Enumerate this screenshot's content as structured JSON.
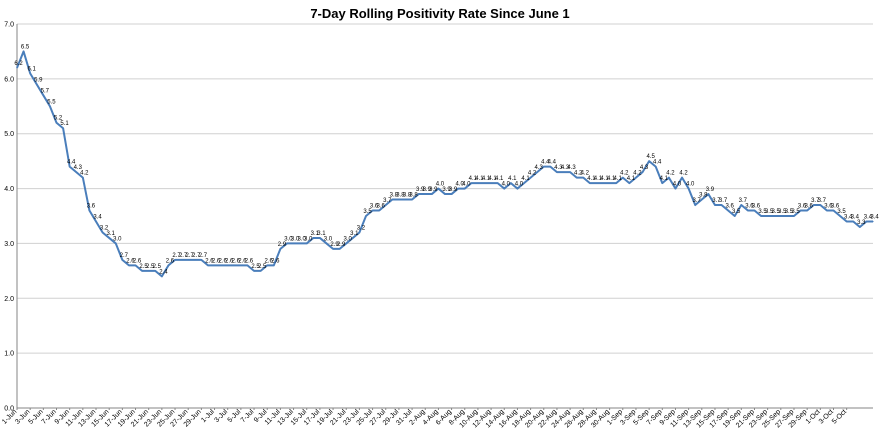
{
  "chart_data": {
    "type": "line",
    "title": "7-Day Rolling Positivity Rate Since June 1",
    "xlabel": "",
    "ylabel": "",
    "ylim": [
      0,
      7
    ],
    "y_ticks": [
      "0.0",
      "1.0",
      "2.0",
      "3.0",
      "4.0",
      "5.0",
      "6.0",
      "7.0"
    ],
    "grid": "horizontal",
    "legend": "none",
    "line_color": "#4a7ebb",
    "x_tick_labels": [
      "1-Jun",
      "3-Jun",
      "5-Jun",
      "7-Jun",
      "9-Jun",
      "11-Jun",
      "13-Jun",
      "15-Jun",
      "17-Jun",
      "19-Jun",
      "21-Jun",
      "23-Jun",
      "25-Jun",
      "27-Jun",
      "29-Jun",
      "1-Jul",
      "3-Jul",
      "5-Jul",
      "7-Jul",
      "9-Jul",
      "11-Jul",
      "13-Jul",
      "15-Jul",
      "17-Jul",
      "19-Jul",
      "21-Jul",
      "23-Jul",
      "25-Jul",
      "27-Jul",
      "29-Jul",
      "31-Jul",
      "2-Aug",
      "4-Aug",
      "6-Aug",
      "8-Aug",
      "10-Aug",
      "12-Aug",
      "14-Aug",
      "16-Aug",
      "18-Aug",
      "20-Aug",
      "22-Aug",
      "24-Aug",
      "26-Aug",
      "28-Aug",
      "30-Aug",
      "1-Sep",
      "3-Sep",
      "5-Sep",
      "7-Sep",
      "9-Sep",
      "11-Sep",
      "13-Sep",
      "15-Sep",
      "17-Sep",
      "19-Sep",
      "21-Sep",
      "23-Sep",
      "25-Sep",
      "27-Sep",
      "29-Sep",
      "1-Oct",
      "3-Oct",
      "5-Oct"
    ],
    "series": [
      {
        "name": "",
        "values": [
          6.2,
          6.5,
          6.1,
          5.9,
          5.7,
          5.5,
          5.2,
          5.1,
          4.4,
          4.3,
          4.2,
          3.6,
          3.4,
          3.2,
          3.1,
          3.0,
          2.7,
          2.6,
          2.6,
          2.5,
          2.5,
          2.5,
          2.4,
          2.6,
          2.7,
          2.7,
          2.7,
          2.7,
          2.7,
          2.6,
          2.6,
          2.6,
          2.6,
          2.6,
          2.6,
          2.6,
          2.5,
          2.5,
          2.6,
          2.6,
          2.9,
          3.0,
          3.0,
          3.0,
          3.0,
          3.1,
          3.1,
          3.0,
          2.9,
          2.9,
          3.0,
          3.1,
          3.2,
          3.5,
          3.6,
          3.6,
          3.7,
          3.8,
          3.8,
          3.8,
          3.8,
          3.9,
          3.9,
          3.9,
          4.0,
          3.9,
          3.9,
          4.0,
          4.0,
          4.1,
          4.1,
          4.1,
          4.1,
          4.1,
          4.0,
          4.1,
          4.0,
          4.1,
          4.2,
          4.3,
          4.4,
          4.4,
          4.3,
          4.3,
          4.3,
          4.2,
          4.2,
          4.1,
          4.1,
          4.1,
          4.1,
          4.1,
          4.2,
          4.1,
          4.2,
          4.3,
          4.5,
          4.4,
          4.1,
          4.2,
          4.0,
          4.2,
          4.0,
          3.7,
          3.8,
          3.9,
          3.7,
          3.7,
          3.6,
          3.5,
          3.7,
          3.6,
          3.6,
          3.5,
          3.5,
          3.5,
          3.5,
          3.5,
          3.5,
          3.6,
          3.6,
          3.7,
          3.7,
          3.6,
          3.6,
          3.5,
          3.4,
          3.4,
          3.3,
          3.4,
          3.4
        ],
        "labels": [
          "6.2",
          "6.5",
          "6.1",
          "5.9",
          "5.7",
          "5.5",
          "5.2",
          "5.1",
          "4.4",
          "4.3",
          "4.2",
          "3.6",
          "3.4",
          "3.2",
          "3.1",
          "3.0",
          "2.7",
          "2.6",
          "2.6",
          "2.5",
          "2.5",
          "2.5",
          "2.4",
          "2.6",
          "2.7",
          "2.7",
          "2.7",
          "2.7",
          "2.7",
          "2.6",
          "2.6",
          "2.6",
          "2.6",
          "2.6",
          "2.6",
          "2.6",
          "2.5",
          "2.5",
          "2.6",
          "2.6",
          "2.9",
          "3.0",
          "3.0",
          "3.0",
          "3.0",
          "3.1",
          "3.1",
          "3.0",
          "2.9",
          "2.9",
          "3.0",
          "3.1",
          "3.2",
          "3.5",
          "3.6",
          "3.6",
          "3.7",
          "3.8",
          "3.8",
          "3.8",
          "3.8",
          "3.9",
          "3.9",
          "3.9",
          "4.0",
          "3.9",
          "3.9",
          "4.0",
          "4.0",
          "4.1",
          "4.1",
          "4.1",
          "4.1",
          "4.1",
          "4.0",
          "4.1",
          "4.0",
          "4.1",
          "4.2",
          "4.3",
          "4.4",
          "4.4",
          "4.3",
          "4.3",
          "4.3",
          "4.2",
          "4.2",
          "4.1",
          "4.1",
          "4.1",
          "4.1",
          "4.1",
          "4.2",
          "4.1",
          "4.2",
          "4.3",
          "4.5",
          "4.4",
          "4.1",
          "4.2",
          "4.0",
          "4.2",
          "4.0",
          "3.7",
          "3.8",
          "3.9",
          "3.7",
          "3.7",
          "3.6",
          "3.5",
          "3.7",
          "3.6",
          "3.6",
          "3.5",
          "3.5",
          "3.5",
          "3.5",
          "3.5",
          "3.5",
          "3.6",
          "3.6",
          "3.7",
          "3.7",
          "3.6",
          "3.6",
          "3.5",
          "3.4",
          "3.4",
          "3.3",
          "3.4",
          "3.4"
        ]
      }
    ]
  }
}
